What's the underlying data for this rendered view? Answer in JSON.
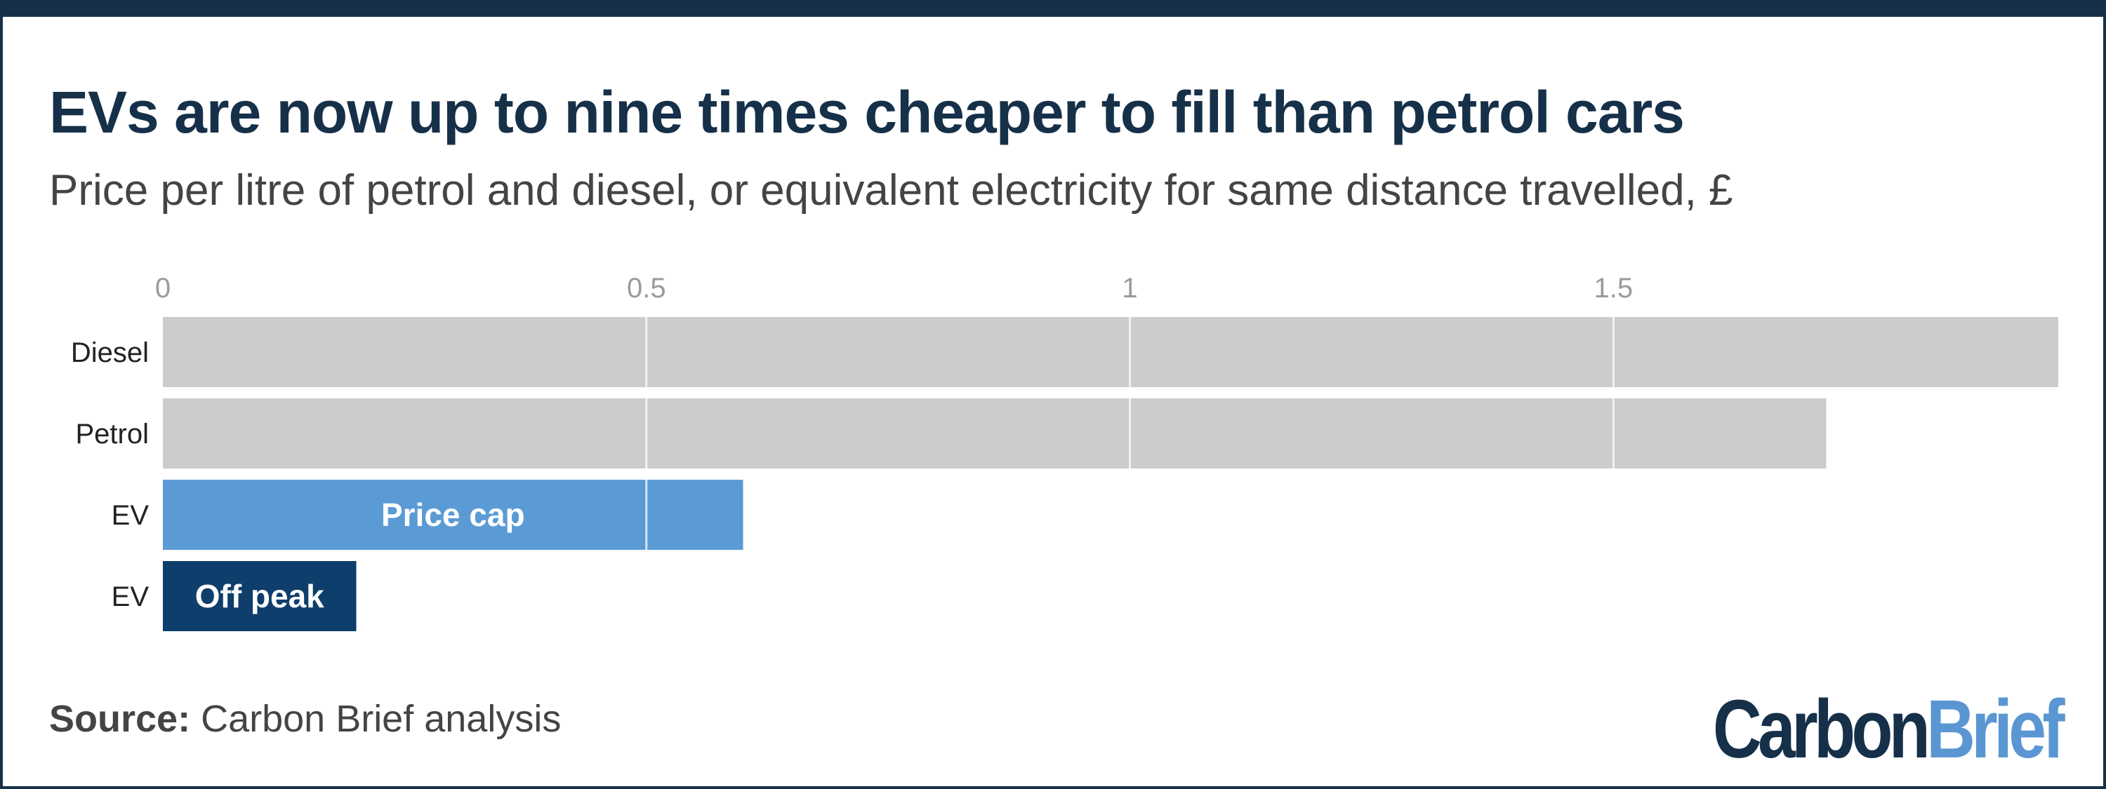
{
  "title": "EVs are now up to nine times cheaper to fill than petrol cars",
  "subtitle": "Price per litre of petrol and diesel, or equivalent electricity for same distance travelled, £",
  "source_label": "Source:",
  "source_text": "Carbon Brief analysis",
  "logo": {
    "part1": "Carbon",
    "part2": "Brief"
  },
  "colors": {
    "grey": "#cccccc",
    "light_blue": "#5b9bd5",
    "dark_blue": "#0e3e6b",
    "navy": "#163049"
  },
  "chart_data": {
    "type": "bar",
    "orientation": "horizontal",
    "xlim": [
      0,
      1.96
    ],
    "xticks": [
      0,
      0.5,
      1,
      1.5
    ],
    "xtick_labels": [
      "0",
      "0.5",
      "1",
      "1.5"
    ],
    "grid": true,
    "bars": [
      {
        "category": "Diesel",
        "value": 1.96,
        "label": "",
        "color": "#cccccc"
      },
      {
        "category": "Petrol",
        "value": 1.72,
        "label": "",
        "color": "#cccccc"
      },
      {
        "category": "EV",
        "value": 0.6,
        "label": "Price cap",
        "color": "#5b9bd5"
      },
      {
        "category": "EV",
        "value": 0.2,
        "label": "Off peak",
        "color": "#0e3e6b"
      }
    ]
  }
}
